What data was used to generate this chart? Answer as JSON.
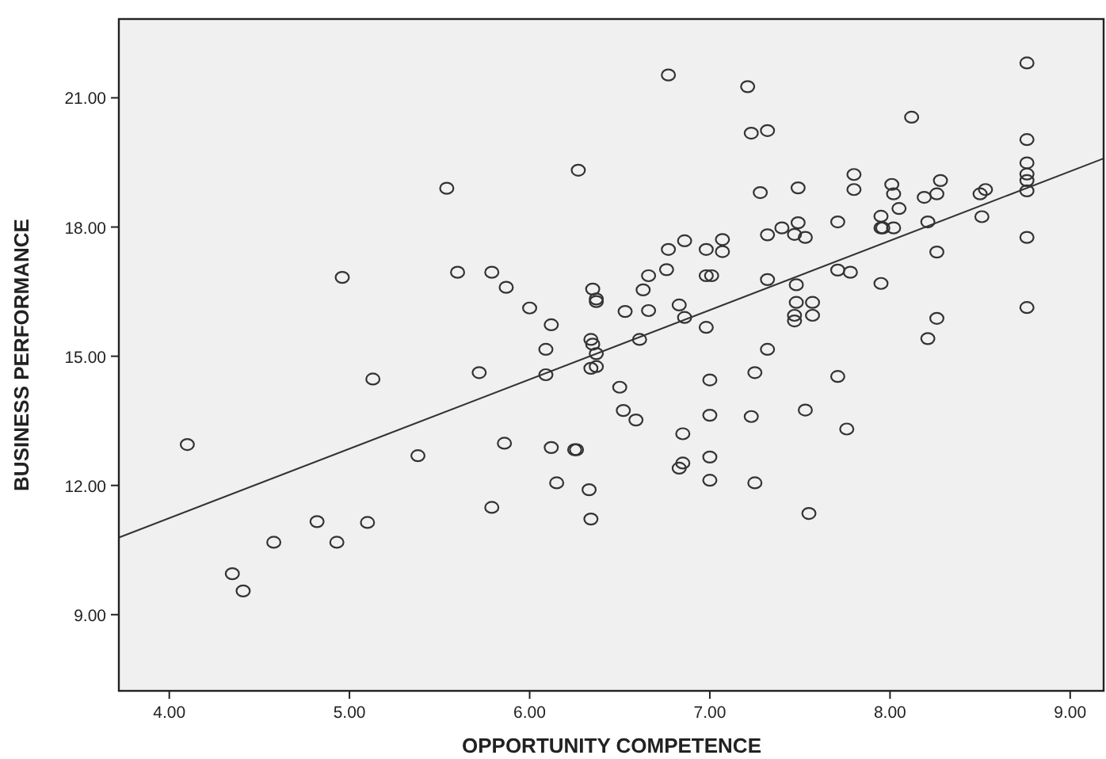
{
  "chart_data": {
    "type": "scatter",
    "xlabel": "OPPORTUNITY COMPETENCE",
    "ylabel": "BUSINESS PERFORMANCE",
    "xlim": [
      3.72,
      9.19
    ],
    "ylim": [
      7.23,
      22.83
    ],
    "xticks": [
      {
        "value": 4,
        "label": "4.00"
      },
      {
        "value": 5,
        "label": "5.00"
      },
      {
        "value": 6,
        "label": "6.00"
      },
      {
        "value": 7,
        "label": "7.00"
      },
      {
        "value": 8,
        "label": "8.00"
      },
      {
        "value": 9,
        "label": "9.00"
      }
    ],
    "yticks": [
      {
        "value": 9,
        "label": "9.00"
      },
      {
        "value": 12,
        "label": "12.00"
      },
      {
        "value": 15,
        "label": "15.00"
      },
      {
        "value": 18,
        "label": "18.00"
      },
      {
        "value": 21,
        "label": "21.00"
      }
    ],
    "grid": false,
    "series": [
      {
        "color": "#333333",
        "marker": "circle",
        "x": [
          4.1,
          5.13,
          5.72,
          6.09,
          6.09,
          6.34,
          6.37,
          6.37,
          5.38,
          5.86,
          6.12,
          6.25,
          6.26,
          6.15,
          6.33,
          6.34,
          5.79,
          4.82,
          5.1,
          4.58,
          4.93,
          4.35,
          4.41,
          6.5,
          6.52,
          6.59,
          6.85,
          6.85,
          6.83,
          7.0,
          7.0,
          7.0,
          7.0,
          7.25,
          7.23,
          7.25,
          7.32,
          7.71,
          7.53,
          7.76,
          7.55,
          6.77,
          7.21,
          7.23,
          7.32,
          8.12,
          8.76,
          8.76,
          8.76,
          8.76,
          8.76,
          8.76,
          8.76,
          8.76,
          7.28,
          7.49,
          7.8,
          7.8,
          8.01,
          8.02,
          8.28,
          8.26,
          8.19,
          8.53,
          8.5,
          8.51,
          8.05,
          7.95,
          7.95,
          7.96,
          8.02,
          8.21,
          8.26,
          7.71,
          7.49,
          7.47,
          7.53,
          7.4,
          7.32,
          7.07,
          7.07,
          6.98,
          6.86,
          6.77,
          6.76,
          6.66,
          6.63,
          6.98,
          7.01,
          6.83,
          6.86,
          6.53,
          6.66,
          6.61,
          6.98,
          7.32,
          7.48,
          7.71,
          7.78,
          7.48,
          7.57,
          7.47,
          7.47,
          7.57,
          7.95,
          8.26,
          8.21,
          6.27,
          5.54,
          4.96,
          5.6,
          5.79,
          5.87,
          6.0,
          6.12,
          6.35,
          6.37,
          6.37,
          6.34,
          6.35
        ],
        "values": [
          12.95,
          14.47,
          14.62,
          14.57,
          15.16,
          14.72,
          14.76,
          15.06,
          12.69,
          12.98,
          12.88,
          12.83,
          12.83,
          12.06,
          11.9,
          11.22,
          11.49,
          11.16,
          11.14,
          10.68,
          10.68,
          9.95,
          9.55,
          14.28,
          13.74,
          13.52,
          13.2,
          12.52,
          12.4,
          14.45,
          13.63,
          12.66,
          12.12,
          14.62,
          13.6,
          12.06,
          15.16,
          14.53,
          13.75,
          13.31,
          11.35,
          21.53,
          21.26,
          20.18,
          20.24,
          20.55,
          21.81,
          20.03,
          19.49,
          19.23,
          19.08,
          18.84,
          17.76,
          16.13,
          18.8,
          18.91,
          19.22,
          18.87,
          18.99,
          18.77,
          19.08,
          18.77,
          18.69,
          18.87,
          18.77,
          18.24,
          18.43,
          18.25,
          17.98,
          17.98,
          17.98,
          18.12,
          17.42,
          18.12,
          18.1,
          17.83,
          17.76,
          17.98,
          17.82,
          17.71,
          17.43,
          17.48,
          17.68,
          17.48,
          17.01,
          16.87,
          16.54,
          16.87,
          16.87,
          16.19,
          15.9,
          16.04,
          16.06,
          15.39,
          15.67,
          16.78,
          16.66,
          17.0,
          16.95,
          16.25,
          16.25,
          15.95,
          15.82,
          15.95,
          16.69,
          15.88,
          15.41,
          19.32,
          18.9,
          16.83,
          16.95,
          16.95,
          16.6,
          16.12,
          15.73,
          16.56,
          16.33,
          16.27,
          15.39,
          15.28
        ]
      },
      {
        "type": "line",
        "color": "#333333",
        "x": [
          3.72,
          9.19
        ],
        "values": [
          10.79,
          19.6
        ]
      }
    ]
  }
}
